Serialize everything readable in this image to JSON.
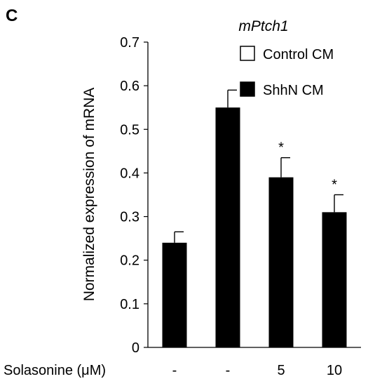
{
  "panel_label": "C",
  "chart_data": {
    "type": "bar",
    "title": "mPtch1",
    "ylabel": "Normalized expression of mRNA",
    "xlabel": "",
    "ylim": [
      0,
      0.7
    ],
    "yticks": [
      "0",
      "0.1",
      "0.2",
      "0.3",
      "0.4",
      "0.5",
      "0.6",
      "0.7"
    ],
    "x_row_label": "Solasonine (μM)",
    "categories": [
      "-",
      "-",
      "5",
      "10"
    ],
    "series": [
      {
        "name": "Control CM",
        "fill": "#ffffff",
        "values": [
          null,
          null,
          null,
          null
        ]
      },
      {
        "name": "ShhN CM",
        "fill": "#000000",
        "values": [
          0.24,
          0.55,
          0.39,
          0.31
        ],
        "errors": [
          0.025,
          0.04,
          0.045,
          0.04
        ]
      }
    ],
    "significance": [
      "",
      "",
      "*",
      "*"
    ],
    "legend_position": "top-right",
    "grid": false
  }
}
